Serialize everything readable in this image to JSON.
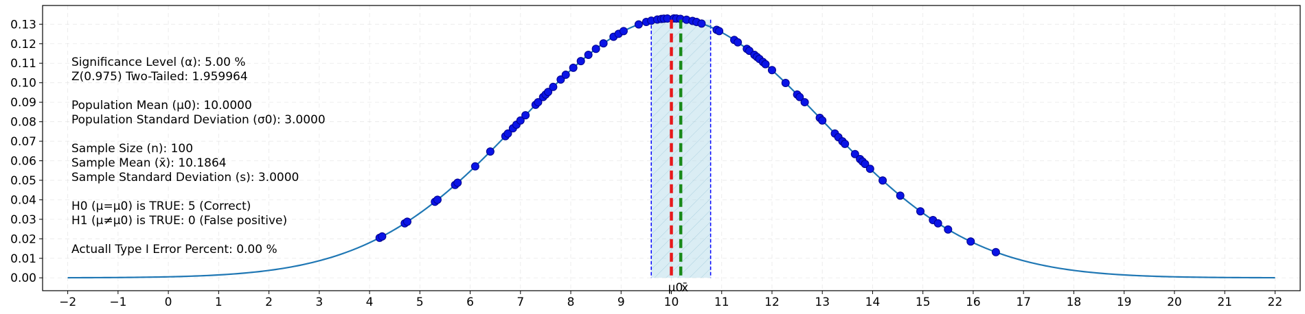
{
  "chart_data": {
    "type": "line",
    "title": "",
    "xlabel": "",
    "ylabel": "",
    "xlim": [
      -2.5,
      22.5
    ],
    "ylim": [
      -0.0066,
      0.1396
    ],
    "x_ticks": [
      -2,
      -1,
      0,
      1,
      2,
      3,
      4,
      5,
      6,
      7,
      8,
      9,
      10,
      11,
      12,
      13,
      14,
      15,
      16,
      17,
      18,
      19,
      20,
      21,
      22
    ],
    "y_ticks": [
      0.0,
      0.01,
      0.02,
      0.03,
      0.04,
      0.05,
      0.06,
      0.07,
      0.08,
      0.09,
      0.1,
      0.11,
      0.12,
      0.13
    ],
    "grid": true,
    "curve": {
      "distribution": "normal",
      "mean": 10.0,
      "std": 3.0,
      "x_range": [
        -2,
        22
      ]
    },
    "acceptance_region": {
      "x_min": 9.6,
      "x_max": 10.78,
      "y_max": 0.1323
    },
    "vertical_lines": [
      {
        "name": "population-mean-line",
        "x": 10.0,
        "label": "μ0",
        "color": "#e8191c"
      },
      {
        "name": "sample-mean-line",
        "x": 10.1864,
        "label": "x̄",
        "color": "#1a8a1a"
      }
    ],
    "sample_points_x": [
      4.2,
      4.25,
      4.7,
      4.75,
      5.3,
      5.35,
      5.7,
      5.75,
      6.1,
      6.4,
      6.7,
      6.75,
      6.85,
      6.92,
      7.0,
      7.1,
      7.3,
      7.35,
      7.45,
      7.5,
      7.55,
      7.65,
      7.8,
      7.9,
      8.05,
      8.2,
      8.35,
      8.5,
      8.65,
      8.85,
      8.95,
      9.05,
      9.35,
      9.5,
      9.6,
      9.72,
      9.8,
      9.85,
      9.92,
      10.05,
      10.1,
      10.18,
      10.3,
      10.42,
      10.5,
      10.6,
      10.9,
      10.95,
      11.25,
      11.32,
      11.5,
      11.55,
      11.65,
      11.7,
      11.75,
      11.82,
      11.87,
      12.0,
      12.27,
      12.5,
      12.55,
      12.65,
      12.95,
      13.0,
      13.25,
      13.32,
      13.4,
      13.45,
      13.65,
      13.75,
      13.8,
      13.85,
      13.95,
      14.2,
      14.55,
      14.95,
      15.2,
      15.3,
      15.5,
      15.95,
      16.45
    ],
    "colors": {
      "curve": "#1f77b4",
      "points": "#0a14e6",
      "region_fill": "#add8e6",
      "region_edge": "#0000ff"
    }
  },
  "info_lines": [
    "Significance Level (α): 5.00 %",
    "Z(0.975) Two-Tailed: 1.959964",
    "",
    "Population Mean (μ0): 10.0000",
    "Population Standard Deviation (σ0): 3.0000",
    "",
    "Sample Size (n): 100",
    "Sample Mean (x̄): 10.1864",
    "Sample Standard Deviation (s): 3.0000",
    "",
    "H0 (μ=μ0) is TRUE: 5 (Correct)",
    "H1 (μ≠μ0) is TRUE: 0 (False positive)",
    "",
    "Actuall Type I Error Percent: 0.00 %"
  ]
}
